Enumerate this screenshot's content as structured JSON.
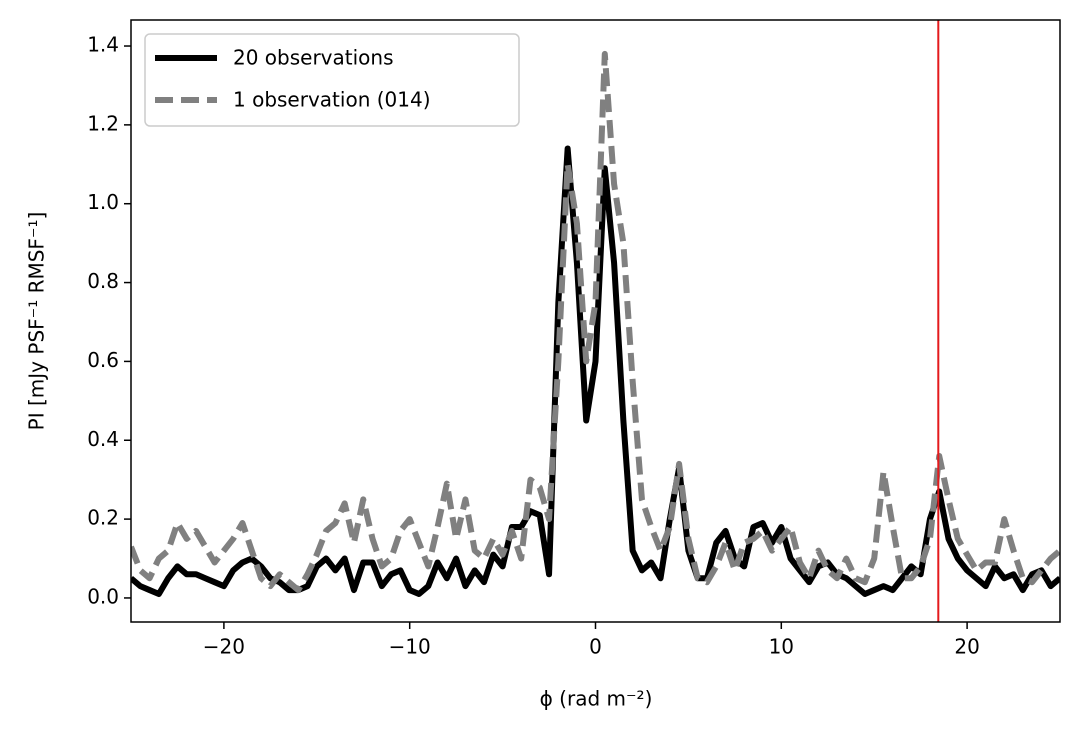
{
  "chart_data": {
    "type": "line",
    "xlabel": "ϕ (rad m⁻²)",
    "ylabel": "PI [mJy PSF⁻¹ RMSF⁻¹]",
    "x": [
      -25,
      -24.5,
      -24,
      -23.5,
      -23,
      -22.5,
      -22,
      -21.5,
      -21,
      -20.5,
      -20,
      -19.5,
      -19,
      -18.5,
      -18,
      -17.5,
      -17,
      -16.5,
      -16,
      -15.5,
      -15,
      -14.5,
      -14,
      -13.5,
      -13,
      -12.5,
      -12,
      -11.5,
      -11,
      -10.5,
      -10,
      -9.5,
      -9,
      -8.5,
      -8,
      -7.5,
      -7,
      -6.5,
      -6,
      -5.5,
      -5,
      -4.5,
      -4,
      -3.5,
      -3,
      -2.5,
      -2,
      -1.5,
      -1,
      -0.5,
      0,
      0.5,
      1,
      1.5,
      2,
      2.5,
      3,
      3.5,
      4,
      4.5,
      5,
      5.5,
      6,
      6.5,
      7,
      7.5,
      8,
      8.5,
      9,
      9.5,
      10,
      10.5,
      11,
      11.5,
      12,
      12.5,
      13,
      13.5,
      14,
      14.5,
      15,
      15.5,
      16,
      16.5,
      17,
      17.5,
      18,
      18.5,
      19,
      19.5,
      20,
      20.5,
      21,
      21.5,
      22,
      22.5,
      23,
      23.5,
      24,
      24.5,
      25
    ],
    "series": [
      {
        "name": "20 observations",
        "color": "#000000",
        "linestyle": "solid",
        "values": [
          0.05,
          0.03,
          0.02,
          0.01,
          0.05,
          0.08,
          0.06,
          0.06,
          0.05,
          0.04,
          0.03,
          0.07,
          0.09,
          0.1,
          0.08,
          0.05,
          0.04,
          0.02,
          0.02,
          0.03,
          0.08,
          0.1,
          0.07,
          0.1,
          0.02,
          0.09,
          0.09,
          0.03,
          0.06,
          0.07,
          0.02,
          0.01,
          0.03,
          0.09,
          0.05,
          0.1,
          0.03,
          0.07,
          0.04,
          0.11,
          0.08,
          0.18,
          0.18,
          0.22,
          0.21,
          0.06,
          0.75,
          1.14,
          0.85,
          0.45,
          0.6,
          1.09,
          0.85,
          0.45,
          0.12,
          0.07,
          0.09,
          0.05,
          0.2,
          0.33,
          0.12,
          0.05,
          0.05,
          0.14,
          0.17,
          0.1,
          0.08,
          0.18,
          0.19,
          0.14,
          0.18,
          0.1,
          0.07,
          0.04,
          0.08,
          0.09,
          0.06,
          0.05,
          0.03,
          0.01,
          0.02,
          0.03,
          0.02,
          0.05,
          0.08,
          0.06,
          0.2,
          0.27,
          0.15,
          0.1,
          0.07,
          0.05,
          0.03,
          0.08,
          0.05,
          0.06,
          0.02,
          0.06,
          0.07,
          0.03,
          0.05
        ]
      },
      {
        "name": "1 observation (014)",
        "color": "#808080",
        "linestyle": "dashed",
        "values": [
          0.13,
          0.07,
          0.05,
          0.1,
          0.12,
          0.19,
          0.15,
          0.17,
          0.13,
          0.09,
          0.12,
          0.15,
          0.19,
          0.12,
          0.05,
          0.03,
          0.06,
          0.04,
          0.02,
          0.06,
          0.11,
          0.17,
          0.19,
          0.24,
          0.14,
          0.25,
          0.15,
          0.08,
          0.1,
          0.17,
          0.2,
          0.14,
          0.08,
          0.18,
          0.29,
          0.15,
          0.25,
          0.12,
          0.1,
          0.15,
          0.11,
          0.17,
          0.1,
          0.3,
          0.28,
          0.2,
          0.6,
          1.1,
          0.95,
          0.6,
          0.75,
          1.38,
          1.05,
          0.9,
          0.55,
          0.25,
          0.18,
          0.12,
          0.18,
          0.34,
          0.15,
          0.05,
          0.04,
          0.08,
          0.14,
          0.07,
          0.14,
          0.15,
          0.17,
          0.12,
          0.15,
          0.18,
          0.09,
          0.05,
          0.12,
          0.07,
          0.05,
          0.1,
          0.05,
          0.04,
          0.1,
          0.32,
          0.18,
          0.05,
          0.05,
          0.08,
          0.15,
          0.36,
          0.25,
          0.15,
          0.11,
          0.07,
          0.09,
          0.09,
          0.2,
          0.12,
          0.05,
          0.04,
          0.07,
          0.1,
          0.12
        ]
      }
    ],
    "vlines": [
      18.45
    ],
    "vline_color": "#e41a1c",
    "xlim": [
      -25,
      25
    ],
    "xticks": [
      {
        "value": -20,
        "label": "−20"
      },
      {
        "value": -10,
        "label": "−10"
      },
      0,
      10,
      20
    ],
    "ylim": [
      -0.061,
      1.466
    ],
    "yticks": [
      {
        "value": 0,
        "label": "0.0"
      },
      0.2,
      0.4,
      0.6,
      0.8,
      {
        "value": 1,
        "label": "1.0"
      },
      1.2,
      1.4
    ],
    "legend": "upper left",
    "grid": false
  }
}
